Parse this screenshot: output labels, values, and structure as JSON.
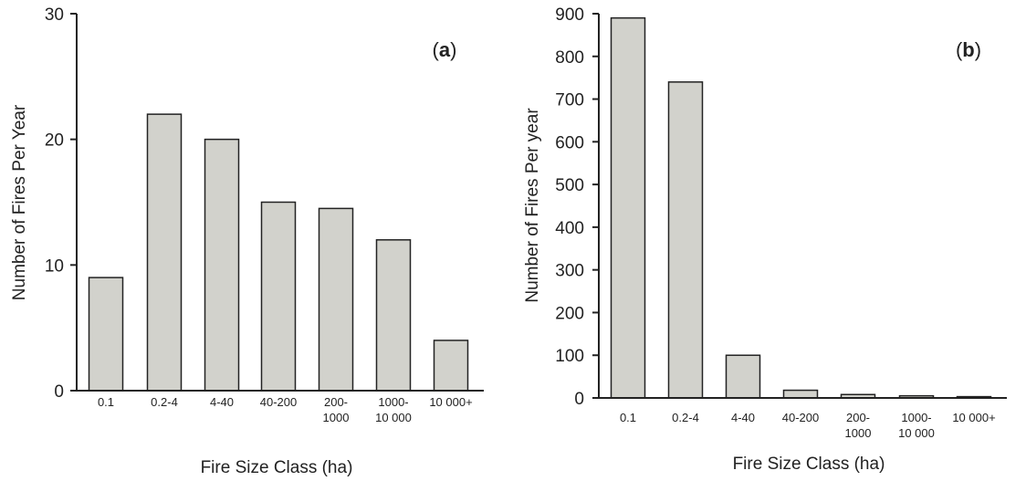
{
  "chart_data": [
    {
      "panel": "a",
      "type": "bar",
      "panel_label": {
        "open": "(",
        "letter": "a",
        "close": ")"
      },
      "xlabel": "Fire Size Class (ha)",
      "ylabel": "Number of Fires Per Year",
      "categories": [
        [
          "0.1"
        ],
        [
          "0.2-4"
        ],
        [
          "4-40"
        ],
        [
          "40-200"
        ],
        [
          "200-",
          "1000"
        ],
        [
          "1000-",
          "10 000"
        ],
        [
          "10 000+"
        ]
      ],
      "values": [
        9,
        22,
        20,
        15,
        14.5,
        12,
        4
      ],
      "ylim": [
        0,
        30
      ],
      "yticks": [
        0,
        10,
        20,
        30
      ],
      "grid": false,
      "legend": "none"
    },
    {
      "panel": "b",
      "type": "bar",
      "panel_label": {
        "open": "(",
        "letter": "b",
        "close": ")"
      },
      "xlabel": "Fire Size Class (ha)",
      "ylabel": "Number of Fires Per year",
      "categories": [
        [
          "0.1"
        ],
        [
          "0.2-4"
        ],
        [
          "4-40"
        ],
        [
          "40-200"
        ],
        [
          "200-",
          "1000"
        ],
        [
          "1000-",
          "10 000"
        ],
        [
          "10 000+"
        ]
      ],
      "values": [
        890,
        740,
        100,
        18,
        8,
        5,
        3
      ],
      "ylim": [
        0,
        900
      ],
      "yticks": [
        0,
        100,
        200,
        300,
        400,
        500,
        600,
        700,
        800,
        900
      ],
      "grid": false,
      "legend": "none"
    }
  ]
}
